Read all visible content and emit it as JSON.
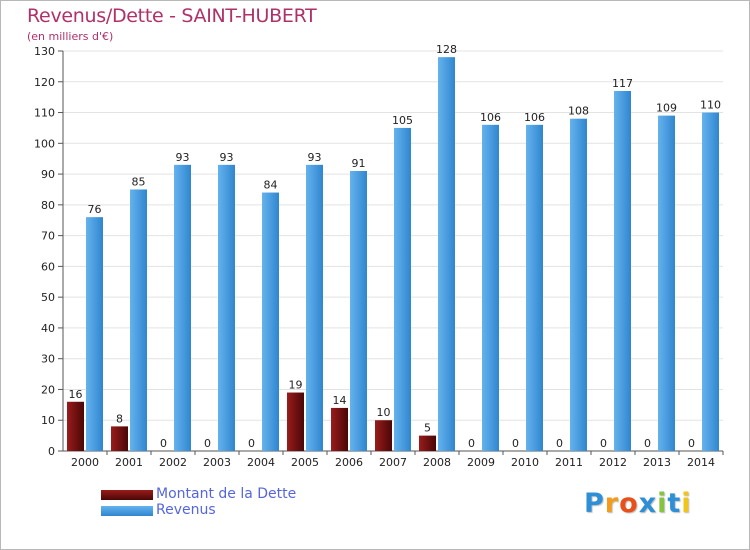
{
  "header": {
    "title": "Revenus/Dette - SAINT-HUBERT",
    "subtitle": "(en milliers d'€)"
  },
  "brand": {
    "logo_letters": [
      "P",
      "r",
      "o",
      "x",
      "i",
      "t",
      "i"
    ],
    "logo_colors": [
      "#2e8fd6",
      "#f39c1a",
      "#e8501a",
      "#2e8fd6",
      "#86c440",
      "#2e8fd6",
      "#f0c41a"
    ]
  },
  "colors": {
    "revenus": "#4a9fe0",
    "dette": "#7a1010",
    "text": "#222222",
    "grid": "#e3e3e3",
    "title": "#b0306a",
    "legend_text": "#5566dd"
  },
  "chart_data": {
    "type": "bar",
    "title": "Revenus/Dette - SAINT-HUBERT",
    "subtitle": "(en milliers d'€)",
    "xlabel": "",
    "ylabel": "",
    "ylim": [
      0,
      130
    ],
    "yticks": [
      0,
      10,
      20,
      30,
      40,
      50,
      60,
      70,
      80,
      90,
      100,
      110,
      120,
      130
    ],
    "grid": true,
    "legend_position": "bottom-left",
    "categories": [
      "2000",
      "2001",
      "2002",
      "2003",
      "2004",
      "2005",
      "2006",
      "2007",
      "2008",
      "2009",
      "2010",
      "2011",
      "2012",
      "2013",
      "2014"
    ],
    "series": [
      {
        "name": "Montant de la Dette",
        "color": "#7a1010",
        "values": [
          16,
          8,
          0,
          0,
          0,
          19,
          14,
          10,
          5,
          0,
          0,
          0,
          0,
          0,
          0
        ]
      },
      {
        "name": "Revenus",
        "color": "#4a9fe0",
        "values": [
          76,
          85,
          93,
          93,
          84,
          93,
          91,
          105,
          128,
          106,
          106,
          108,
          117,
          109,
          110
        ]
      }
    ]
  }
}
